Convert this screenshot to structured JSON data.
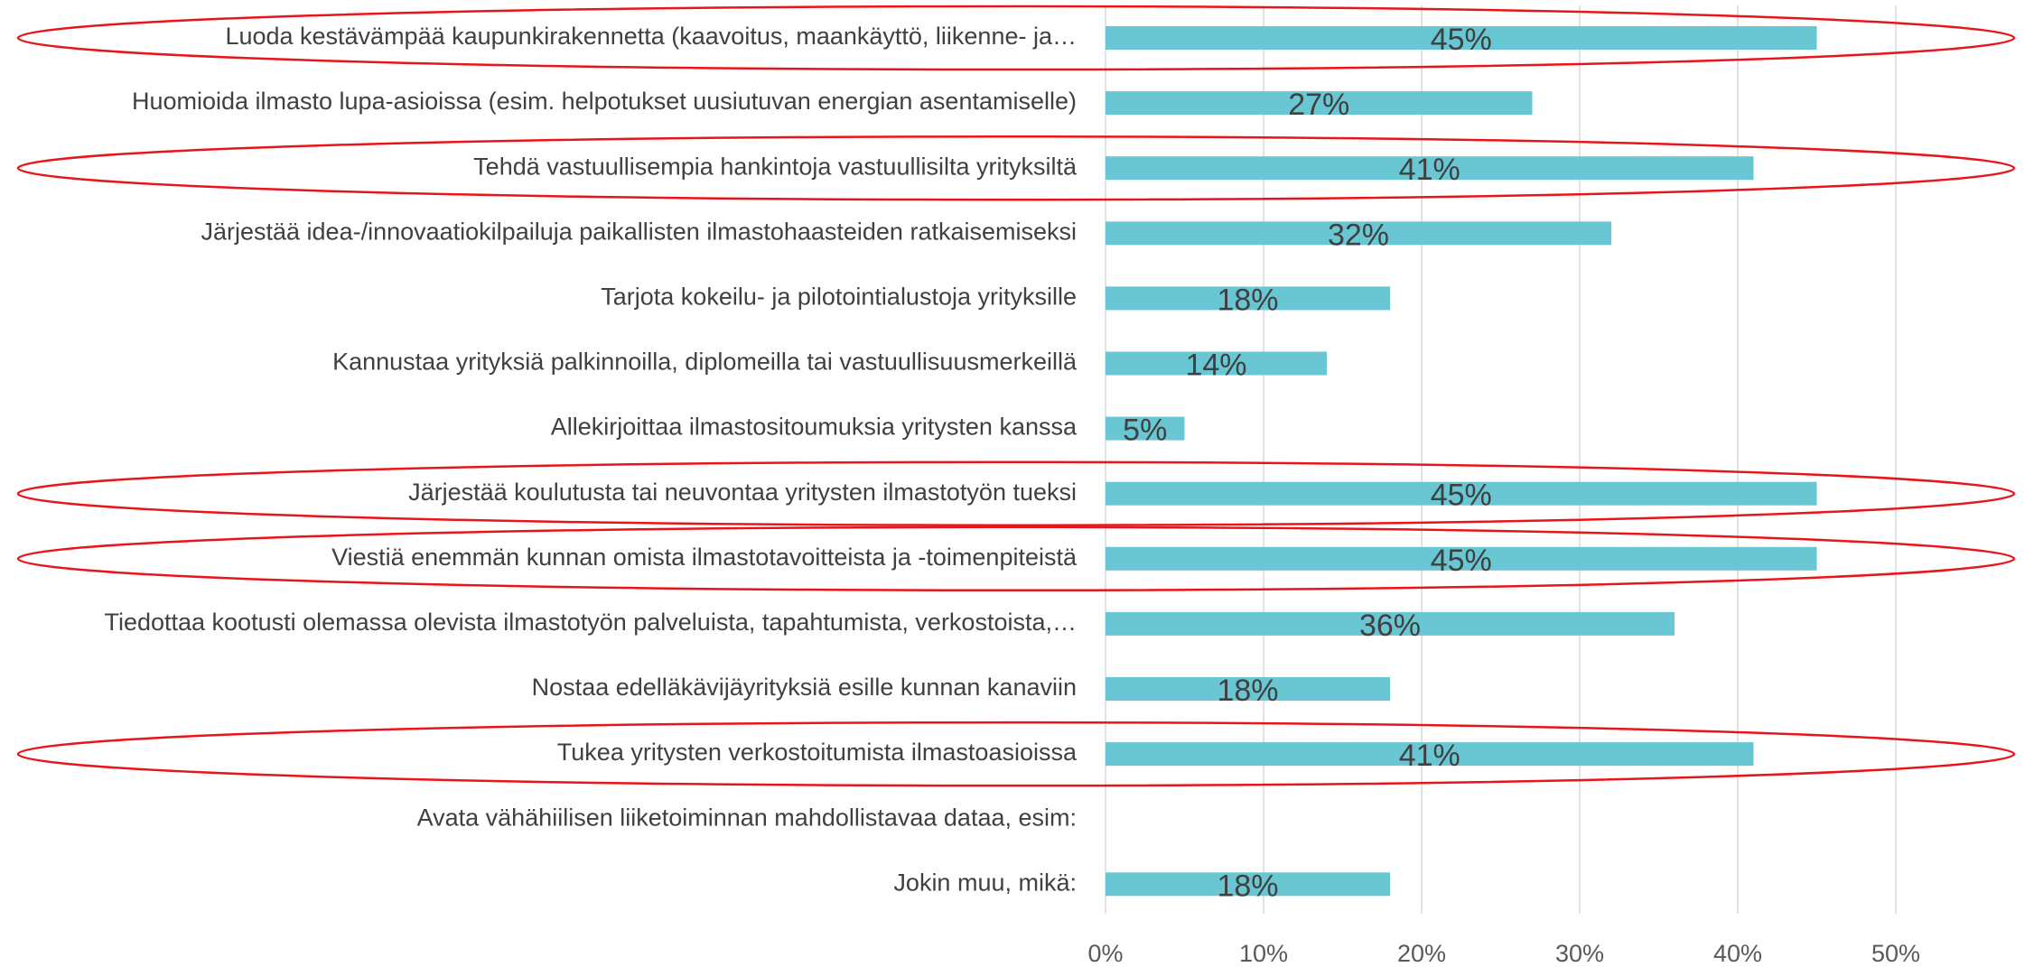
{
  "chart_data": {
    "type": "barh",
    "categories": [
      "Luoda kestävämpää kaupunkirakennetta (kaavoitus, maankäyttö, liikenne- ja…",
      "Huomioida ilmasto lupa-asioissa (esim. helpotukset uusiutuvan energian asentamiselle)",
      "Tehdä vastuullisempia hankintoja vastuullisilta yrityksiltä",
      "Järjestää idea-/innovaatiokilpailuja paikallisten ilmastohaasteiden ratkaisemiseksi",
      "Tarjota kokeilu- ja pilotointialustoja yrityksille",
      "Kannustaa yrityksiä palkinnoilla, diplomeilla tai vastuullisuusmerkeillä",
      "Allekirjoittaa ilmastositoumuksia yritysten kanssa",
      "Järjestää koulutusta tai neuvontaa yritysten ilmastotyön tueksi",
      "Viestiä enemmän kunnan omista ilmastotavoitteista ja -toimenpiteistä",
      "Tiedottaa kootusti olemassa olevista ilmastotyön palveluista, tapahtumista, verkostoista,…",
      "Nostaa edelläkävijäyrityksiä esille kunnan kanaviin",
      "Tukea yritysten verkostoitumista ilmastoasioissa",
      "Avata vähähiilisen liiketoiminnan mahdollistavaa dataa, esim:",
      "Jokin muu, mikä:"
    ],
    "values": [
      45,
      27,
      41,
      32,
      18,
      14,
      5,
      45,
      45,
      36,
      18,
      41,
      null,
      18
    ],
    "value_labels": [
      "45%",
      "27%",
      "41%",
      "32%",
      "18%",
      "14%",
      "5%",
      "45%",
      "45%",
      "36%",
      "18%",
      "41%",
      null,
      "18%"
    ],
    "color": "#68c7d3",
    "xlim": [
      0,
      55
    ],
    "xticks": [
      {
        "value": 0,
        "label": "0%"
      },
      {
        "value": 10,
        "label": "10%"
      },
      {
        "value": 20,
        "label": "20%"
      },
      {
        "value": 30,
        "label": "30%"
      },
      {
        "value": 40,
        "label": "40%"
      },
      {
        "value": 50,
        "label": "50%"
      }
    ],
    "grid": true,
    "highlight": [
      0,
      2,
      7,
      8,
      11
    ],
    "highlight_color": "#e8161b"
  }
}
